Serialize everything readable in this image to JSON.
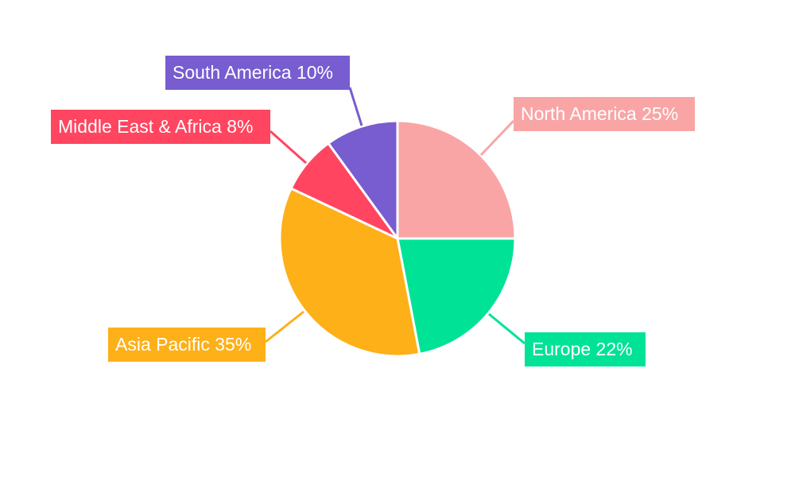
{
  "chart_data": {
    "type": "pie",
    "start": "top",
    "direction": "clockwise",
    "slices": [
      {
        "label": "North America",
        "value": 25,
        "text": "North America 25%",
        "color": "#F9A5A6"
      },
      {
        "label": "Europe",
        "value": 22,
        "text": "Europe 22%",
        "color": "#00E396"
      },
      {
        "label": "Asia Pacific",
        "value": 35,
        "text": "Asia Pacific 35%",
        "color": "#FEB019"
      },
      {
        "label": "Middle East & Africa",
        "value": 8,
        "text": "Middle East & Africa 8%",
        "color": "#FF4560"
      },
      {
        "label": "South America",
        "value": 10,
        "text": "South America 10%",
        "color": "#775DD0"
      }
    ]
  }
}
